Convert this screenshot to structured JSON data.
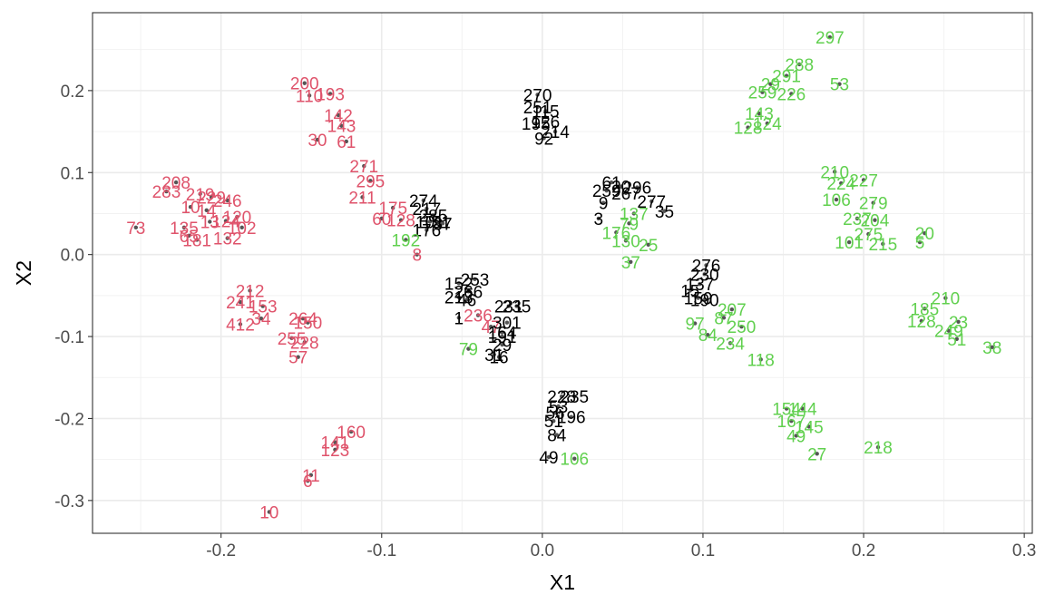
{
  "chart_data": {
    "type": "scatter",
    "xlabel": "X1",
    "ylabel": "X2",
    "xlim": [
      -0.28,
      0.305
    ],
    "ylim": [
      -0.34,
      0.295
    ],
    "x_ticks": [
      -0.2,
      -0.1,
      0.0,
      0.1,
      0.2,
      0.3
    ],
    "x_tick_labels": [
      "-0.2",
      "-0.1",
      "0.0",
      "0.1",
      "0.2",
      "0.3"
    ],
    "y_ticks": [
      -0.3,
      -0.2,
      -0.1,
      0.0,
      0.1,
      0.2
    ],
    "y_tick_labels": [
      "-0.3",
      "-0.2",
      "-0.1",
      "0.0",
      "0.1",
      "0.2"
    ],
    "grid": true,
    "legend": "none",
    "colors": {
      "red": "#DF536B",
      "black": "#000000",
      "green": "#61D04F",
      "point": "#555555"
    },
    "points": [
      {
        "label": "200",
        "x": -0.148,
        "y": 0.209,
        "color": "red"
      },
      {
        "label": "110",
        "x": -0.145,
        "y": 0.194,
        "color": "red"
      },
      {
        "label": "193",
        "x": -0.132,
        "y": 0.196,
        "color": "red"
      },
      {
        "label": "142",
        "x": -0.127,
        "y": 0.17,
        "color": "red"
      },
      {
        "label": "143",
        "x": -0.125,
        "y": 0.157,
        "color": "red"
      },
      {
        "label": "30",
        "x": -0.14,
        "y": 0.14,
        "color": "red"
      },
      {
        "label": "61",
        "x": -0.122,
        "y": 0.138,
        "color": "red"
      },
      {
        "label": "271",
        "x": -0.111,
        "y": 0.108,
        "color": "red"
      },
      {
        "label": "295",
        "x": -0.107,
        "y": 0.09,
        "color": "red"
      },
      {
        "label": "211",
        "x": -0.112,
        "y": 0.07,
        "color": "red"
      },
      {
        "label": "175",
        "x": -0.093,
        "y": 0.057,
        "color": "red"
      },
      {
        "label": "60",
        "x": -0.1,
        "y": 0.044,
        "color": "red"
      },
      {
        "label": "128",
        "x": -0.088,
        "y": 0.042,
        "color": "red"
      },
      {
        "label": "8",
        "x": -0.078,
        "y": 0.0,
        "color": "red"
      },
      {
        "label": "208",
        "x": -0.228,
        "y": 0.088,
        "color": "red"
      },
      {
        "label": "283",
        "x": -0.234,
        "y": 0.077,
        "color": "red"
      },
      {
        "label": "219",
        "x": -0.213,
        "y": 0.074,
        "color": "red"
      },
      {
        "label": "229",
        "x": -0.206,
        "y": 0.07,
        "color": "red"
      },
      {
        "label": "246",
        "x": -0.196,
        "y": 0.066,
        "color": "red"
      },
      {
        "label": "10",
        "x": -0.219,
        "y": 0.058,
        "color": "red"
      },
      {
        "label": "14",
        "x": -0.209,
        "y": 0.054,
        "color": "red"
      },
      {
        "label": "120",
        "x": -0.19,
        "y": 0.046,
        "color": "red"
      },
      {
        "label": "135",
        "x": -0.223,
        "y": 0.033,
        "color": "red"
      },
      {
        "label": "13",
        "x": -0.207,
        "y": 0.04,
        "color": "red"
      },
      {
        "label": "124",
        "x": -0.197,
        "y": 0.041,
        "color": "red"
      },
      {
        "label": "102",
        "x": -0.187,
        "y": 0.033,
        "color": "red"
      },
      {
        "label": "73",
        "x": -0.253,
        "y": 0.033,
        "color": "red"
      },
      {
        "label": "65",
        "x": -0.22,
        "y": 0.023,
        "color": "red"
      },
      {
        "label": "181",
        "x": -0.215,
        "y": 0.018,
        "color": "red"
      },
      {
        "label": "132",
        "x": -0.196,
        "y": 0.02,
        "color": "red"
      },
      {
        "label": "212",
        "x": -0.182,
        "y": -0.044,
        "color": "red"
      },
      {
        "label": "241",
        "x": -0.188,
        "y": -0.058,
        "color": "red"
      },
      {
        "label": "153",
        "x": -0.174,
        "y": -0.063,
        "color": "red"
      },
      {
        "label": "34",
        "x": -0.175,
        "y": -0.078,
        "color": "red"
      },
      {
        "label": "412",
        "x": -0.188,
        "y": -0.085,
        "color": "red"
      },
      {
        "label": "264",
        "x": -0.149,
        "y": -0.078,
        "color": "red"
      },
      {
        "label": "150",
        "x": -0.146,
        "y": -0.083,
        "color": "red"
      },
      {
        "label": "255",
        "x": -0.156,
        "y": -0.102,
        "color": "red"
      },
      {
        "label": "228",
        "x": -0.148,
        "y": -0.107,
        "color": "red"
      },
      {
        "label": "57",
        "x": -0.152,
        "y": -0.125,
        "color": "red"
      },
      {
        "label": "160",
        "x": -0.119,
        "y": -0.216,
        "color": "red"
      },
      {
        "label": "141",
        "x": -0.129,
        "y": -0.229,
        "color": "red"
      },
      {
        "label": "123",
        "x": -0.129,
        "y": -0.238,
        "color": "red"
      },
      {
        "label": "11",
        "x": -0.144,
        "y": -0.269,
        "color": "red"
      },
      {
        "label": "6",
        "x": -0.146,
        "y": -0.276,
        "color": "red"
      },
      {
        "label": "10",
        "x": -0.17,
        "y": -0.314,
        "color": "red"
      },
      {
        "label": "236",
        "x": -0.04,
        "y": -0.074,
        "color": "red"
      },
      {
        "label": "47",
        "x": -0.032,
        "y": -0.088,
        "color": "red"
      },
      {
        "label": "270",
        "x": -0.003,
        "y": 0.195,
        "color": "black"
      },
      {
        "label": "251",
        "x": -0.003,
        "y": 0.18,
        "color": "black"
      },
      {
        "label": "115",
        "x": 0.002,
        "y": 0.175,
        "color": "black"
      },
      {
        "label": "126",
        "x": 0.002,
        "y": 0.162,
        "color": "black"
      },
      {
        "label": "195",
        "x": -0.004,
        "y": 0.16,
        "color": "black"
      },
      {
        "label": "214",
        "x": 0.008,
        "y": 0.15,
        "color": "black"
      },
      {
        "label": "92",
        "x": 0.001,
        "y": 0.142,
        "color": "black"
      },
      {
        "label": "274",
        "x": -0.074,
        "y": 0.066,
        "color": "black"
      },
      {
        "label": "217",
        "x": -0.072,
        "y": 0.056,
        "color": "black"
      },
      {
        "label": "285",
        "x": -0.068,
        "y": 0.048,
        "color": "black"
      },
      {
        "label": "101",
        "x": -0.07,
        "y": 0.04,
        "color": "black"
      },
      {
        "label": "151",
        "x": -0.066,
        "y": 0.04,
        "color": "black"
      },
      {
        "label": "87",
        "x": -0.062,
        "y": 0.038,
        "color": "black"
      },
      {
        "label": "176",
        "x": -0.072,
        "y": 0.03,
        "color": "black"
      },
      {
        "label": "253",
        "x": -0.042,
        "y": -0.03,
        "color": "black"
      },
      {
        "label": "152",
        "x": -0.052,
        "y": -0.035,
        "color": "black"
      },
      {
        "label": "266",
        "x": -0.046,
        "y": -0.045,
        "color": "black"
      },
      {
        "label": "213",
        "x": -0.052,
        "y": -0.052,
        "color": "black"
      },
      {
        "label": "46",
        "x": -0.047,
        "y": -0.055,
        "color": "black"
      },
      {
        "label": "1",
        "x": -0.052,
        "y": -0.077,
        "color": "black"
      },
      {
        "label": "231",
        "x": -0.021,
        "y": -0.063,
        "color": "black"
      },
      {
        "label": "235",
        "x": -0.016,
        "y": -0.063,
        "color": "black"
      },
      {
        "label": "301",
        "x": -0.022,
        "y": -0.083,
        "color": "black"
      },
      {
        "label": "164",
        "x": -0.025,
        "y": -0.095,
        "color": "black"
      },
      {
        "label": "191",
        "x": -0.025,
        "y": -0.1,
        "color": "black"
      },
      {
        "label": "29",
        "x": -0.025,
        "y": -0.11,
        "color": "black"
      },
      {
        "label": "16",
        "x": -0.027,
        "y": -0.125,
        "color": "black"
      },
      {
        "label": "31",
        "x": -0.03,
        "y": -0.122,
        "color": "black"
      },
      {
        "label": "61",
        "x": 0.043,
        "y": 0.088,
        "color": "black"
      },
      {
        "label": "20",
        "x": 0.049,
        "y": 0.083,
        "color": "black"
      },
      {
        "label": "296",
        "x": 0.059,
        "y": 0.082,
        "color": "black"
      },
      {
        "label": "259",
        "x": 0.04,
        "y": 0.078,
        "color": "black"
      },
      {
        "label": "267",
        "x": 0.052,
        "y": 0.075,
        "color": "black"
      },
      {
        "label": "9",
        "x": 0.038,
        "y": 0.063,
        "color": "black"
      },
      {
        "label": "277",
        "x": 0.068,
        "y": 0.065,
        "color": "black"
      },
      {
        "label": "35",
        "x": 0.076,
        "y": 0.053,
        "color": "black"
      },
      {
        "label": "3",
        "x": 0.035,
        "y": 0.044,
        "color": "black"
      },
      {
        "label": "276",
        "x": 0.102,
        "y": -0.013,
        "color": "black"
      },
      {
        "label": "230",
        "x": 0.101,
        "y": -0.024,
        "color": "black"
      },
      {
        "label": "137",
        "x": 0.098,
        "y": -0.036,
        "color": "black"
      },
      {
        "label": "15",
        "x": 0.092,
        "y": -0.044,
        "color": "black"
      },
      {
        "label": "159",
        "x": 0.097,
        "y": -0.053,
        "color": "black"
      },
      {
        "label": "190",
        "x": 0.101,
        "y": -0.055,
        "color": "black"
      },
      {
        "label": "228",
        "x": 0.012,
        "y": -0.173,
        "color": "black"
      },
      {
        "label": "235",
        "x": 0.02,
        "y": -0.173,
        "color": "black"
      },
      {
        "label": "53",
        "x": 0.01,
        "y": -0.185,
        "color": "black"
      },
      {
        "label": "56",
        "x": 0.008,
        "y": -0.193,
        "color": "black"
      },
      {
        "label": "196",
        "x": 0.018,
        "y": -0.198,
        "color": "black"
      },
      {
        "label": "51",
        "x": 0.007,
        "y": -0.203,
        "color": "black"
      },
      {
        "label": "84",
        "x": 0.009,
        "y": -0.22,
        "color": "black"
      },
      {
        "label": "49",
        "x": 0.004,
        "y": -0.247,
        "color": "black"
      },
      {
        "label": "297",
        "x": 0.179,
        "y": 0.265,
        "color": "green"
      },
      {
        "label": "288",
        "x": 0.16,
        "y": 0.232,
        "color": "green"
      },
      {
        "label": "291",
        "x": 0.152,
        "y": 0.218,
        "color": "green"
      },
      {
        "label": "53",
        "x": 0.185,
        "y": 0.208,
        "color": "green"
      },
      {
        "label": "29",
        "x": 0.142,
        "y": 0.208,
        "color": "green"
      },
      {
        "label": "259",
        "x": 0.137,
        "y": 0.198,
        "color": "green"
      },
      {
        "label": "226",
        "x": 0.155,
        "y": 0.196,
        "color": "green"
      },
      {
        "label": "143",
        "x": 0.135,
        "y": 0.172,
        "color": "green"
      },
      {
        "label": "124",
        "x": 0.14,
        "y": 0.16,
        "color": "green"
      },
      {
        "label": "128",
        "x": 0.128,
        "y": 0.155,
        "color": "green"
      },
      {
        "label": "210",
        "x": 0.182,
        "y": 0.101,
        "color": "green"
      },
      {
        "label": "227",
        "x": 0.2,
        "y": 0.091,
        "color": "green"
      },
      {
        "label": "224",
        "x": 0.186,
        "y": 0.087,
        "color": "green"
      },
      {
        "label": "106",
        "x": 0.183,
        "y": 0.067,
        "color": "green"
      },
      {
        "label": "279",
        "x": 0.206,
        "y": 0.063,
        "color": "green"
      },
      {
        "label": "237",
        "x": 0.196,
        "y": 0.044,
        "color": "green"
      },
      {
        "label": "204",
        "x": 0.207,
        "y": 0.042,
        "color": "green"
      },
      {
        "label": "275",
        "x": 0.203,
        "y": 0.025,
        "color": "green"
      },
      {
        "label": "101",
        "x": 0.191,
        "y": 0.015,
        "color": "green"
      },
      {
        "label": "215",
        "x": 0.212,
        "y": 0.013,
        "color": "green"
      },
      {
        "label": "20",
        "x": 0.238,
        "y": 0.026,
        "color": "green"
      },
      {
        "label": "5",
        "x": 0.235,
        "y": 0.015,
        "color": "green"
      },
      {
        "label": "137",
        "x": 0.057,
        "y": 0.05,
        "color": "green"
      },
      {
        "label": "79",
        "x": 0.054,
        "y": 0.038,
        "color": "green"
      },
      {
        "label": "176",
        "x": 0.046,
        "y": 0.027,
        "color": "green"
      },
      {
        "label": "130",
        "x": 0.052,
        "y": 0.017,
        "color": "green"
      },
      {
        "label": "25",
        "x": 0.066,
        "y": 0.012,
        "color": "green"
      },
      {
        "label": "37",
        "x": 0.055,
        "y": -0.009,
        "color": "green"
      },
      {
        "label": "192",
        "x": -0.085,
        "y": 0.018,
        "color": "green"
      },
      {
        "label": "79",
        "x": -0.046,
        "y": -0.115,
        "color": "green"
      },
      {
        "label": "106",
        "x": 0.02,
        "y": -0.249,
        "color": "green"
      },
      {
        "label": "207",
        "x": 0.118,
        "y": -0.067,
        "color": "green"
      },
      {
        "label": "87",
        "x": 0.113,
        "y": -0.077,
        "color": "green"
      },
      {
        "label": "97",
        "x": 0.095,
        "y": -0.084,
        "color": "green"
      },
      {
        "label": "250",
        "x": 0.124,
        "y": -0.088,
        "color": "green"
      },
      {
        "label": "84",
        "x": 0.103,
        "y": -0.098,
        "color": "green"
      },
      {
        "label": "234",
        "x": 0.117,
        "y": -0.108,
        "color": "green"
      },
      {
        "label": "118",
        "x": 0.136,
        "y": -0.128,
        "color": "green"
      },
      {
        "label": "210",
        "x": 0.251,
        "y": -0.053,
        "color": "green"
      },
      {
        "label": "185",
        "x": 0.238,
        "y": -0.066,
        "color": "green"
      },
      {
        "label": "128",
        "x": 0.236,
        "y": -0.081,
        "color": "green"
      },
      {
        "label": "23",
        "x": 0.259,
        "y": -0.082,
        "color": "green"
      },
      {
        "label": "249",
        "x": 0.253,
        "y": -0.093,
        "color": "green"
      },
      {
        "label": "51",
        "x": 0.258,
        "y": -0.103,
        "color": "green"
      },
      {
        "label": "38",
        "x": 0.28,
        "y": -0.113,
        "color": "green"
      },
      {
        "label": "154",
        "x": 0.152,
        "y": -0.188,
        "color": "green"
      },
      {
        "label": "144",
        "x": 0.162,
        "y": -0.188,
        "color": "green"
      },
      {
        "label": "167",
        "x": 0.155,
        "y": -0.203,
        "color": "green"
      },
      {
        "label": "145",
        "x": 0.166,
        "y": -0.21,
        "color": "green"
      },
      {
        "label": "49",
        "x": 0.158,
        "y": -0.221,
        "color": "green"
      },
      {
        "label": "27",
        "x": 0.171,
        "y": -0.243,
        "color": "green"
      },
      {
        "label": "218",
        "x": 0.209,
        "y": -0.235,
        "color": "green"
      }
    ]
  }
}
